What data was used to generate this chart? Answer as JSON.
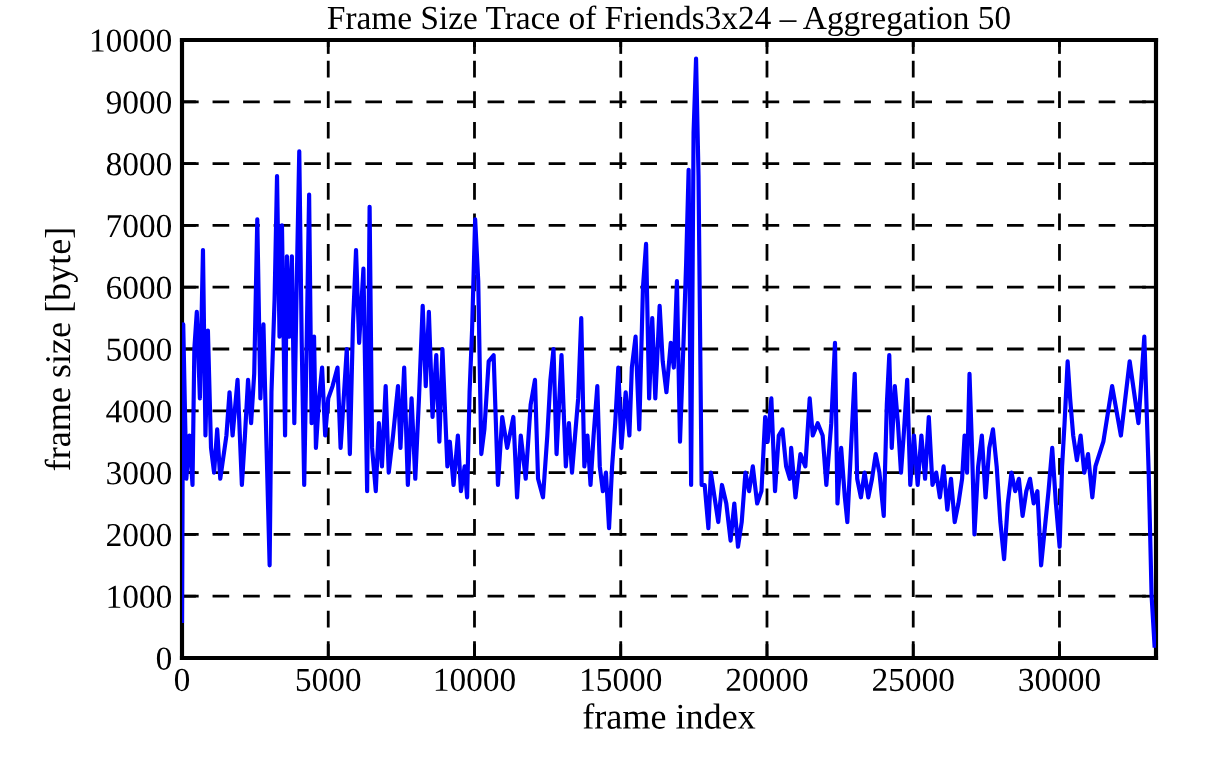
{
  "chart_data": {
    "type": "line",
    "title": "Frame Size Trace of Friends3x24 – Aggregation 50",
    "xlabel": "frame index",
    "ylabel": "frame size [byte]",
    "xlim": [
      0,
      33300
    ],
    "ylim": [
      0,
      10000
    ],
    "xticks": [
      0,
      5000,
      10000,
      15000,
      20000,
      25000,
      30000
    ],
    "yticks": [
      0,
      1000,
      2000,
      3000,
      4000,
      5000,
      6000,
      7000,
      8000,
      9000,
      10000
    ],
    "grid": true,
    "line_style": "dashed",
    "series": [
      {
        "color": "#0000ff",
        "line_style": "solid",
        "x": [
          0,
          42,
          148,
          253,
          359,
          422,
          506,
          612,
          717,
          802,
          886,
          992,
          1097,
          1203,
          1308,
          1519,
          1625,
          1730,
          1899,
          2047,
          2152,
          2258,
          2363,
          2469,
          2574,
          2680,
          2785,
          2891,
          2996,
          3059,
          3165,
          3249,
          3334,
          3418,
          3524,
          3587,
          3671,
          3756,
          3840,
          3924,
          4009,
          4093,
          4178,
          4262,
          4346,
          4431,
          4515,
          4579,
          4684,
          4790,
          4895,
          5001,
          5148,
          5317,
          5423,
          5634,
          5739,
          5845,
          5950,
          6056,
          6203,
          6330,
          6414,
          6499,
          6625,
          6731,
          6836,
          6963,
          7068,
          7216,
          7385,
          7469,
          7596,
          7722,
          7849,
          7976,
          8102,
          8229,
          8334,
          8440,
          8566,
          8693,
          8799,
          8904,
          9073,
          9157,
          9284,
          9432,
          9537,
          9664,
          9748,
          9832,
          9917,
          10022,
          10128,
          10233,
          10339,
          10485,
          10654,
          10802,
          10949,
          11118,
          11329,
          11456,
          11582,
          11751,
          11920,
          12068,
          12173,
          12342,
          12490,
          12595,
          12701,
          12806,
          12975,
          13123,
          13228,
          13334,
          13439,
          13545,
          13650,
          13756,
          13861,
          13967,
          14072,
          14199,
          14283,
          14389,
          14494,
          14600,
          14705,
          14811,
          14916,
          15022,
          15169,
          15296,
          15380,
          15507,
          15633,
          15760,
          15866,
          15971,
          16077,
          16182,
          16330,
          16435,
          16562,
          16710,
          16815,
          16921,
          17026,
          17153,
          17237,
          17321,
          17406,
          17490,
          17575,
          17659,
          17765,
          17870,
          17997,
          18081,
          18208,
          18334,
          18461,
          18609,
          18756,
          18883,
          19009,
          19136,
          19263,
          19389,
          19516,
          19664,
          19811,
          19938,
          20022,
          20149,
          20275,
          20402,
          20529,
          20655,
          20782,
          20827,
          20974,
          21143,
          21312,
          21460,
          21565,
          21734,
          21903,
          22029,
          22198,
          22325,
          22409,
          22536,
          22662,
          22747,
          22873,
          23000,
          23084,
          23211,
          23337,
          23464,
          23591,
          23717,
          23844,
          23992,
          24097,
          24181,
          24266,
          24371,
          24477,
          24582,
          24688,
          24793,
          24899,
          25025,
          25152,
          25279,
          25405,
          25532,
          25658,
          25785,
          25912,
          26038,
          26165,
          26291,
          26418,
          26545,
          26671,
          26756,
          26840,
          26924,
          27009,
          27093,
          27220,
          27346,
          27473,
          27600,
          27726,
          27853,
          27979,
          28106,
          28233,
          28359,
          28486,
          28612,
          28739,
          28866,
          28992,
          29119,
          29245,
          29372,
          29499,
          29625,
          29752,
          29878,
          30005,
          30089,
          30174,
          30279,
          30364,
          30469,
          30596,
          30722,
          30849,
          30976,
          31123,
          31229,
          31500,
          31800,
          32100,
          32400,
          32700,
          32900,
          33050,
          33150,
          33250
        ],
        "values": [
          600,
          5400,
          2900,
          3600,
          2800,
          5000,
          5600,
          4200,
          6600,
          3600,
          5300,
          3400,
          3000,
          3700,
          2900,
          3600,
          4300,
          3600,
          4500,
          2800,
          3600,
          4500,
          3800,
          4600,
          7100,
          4200,
          5400,
          3400,
          1500,
          4300,
          5800,
          7800,
          5200,
          7000,
          3600,
          6500,
          5200,
          6500,
          3800,
          6100,
          8200,
          5100,
          2800,
          5100,
          7500,
          3800,
          5200,
          3400,
          4200,
          4700,
          3600,
          4200,
          4400,
          4700,
          3400,
          5000,
          3300,
          5400,
          6600,
          5100,
          6300,
          2700,
          7300,
          3400,
          2700,
          3800,
          3100,
          4400,
          3000,
          3600,
          4400,
          3400,
          4700,
          2800,
          4200,
          2900,
          4200,
          5700,
          4400,
          5600,
          3900,
          4900,
          3500,
          5000,
          3100,
          3500,
          2800,
          3600,
          2700,
          3100,
          2600,
          4300,
          5300,
          7100,
          6100,
          3300,
          3700,
          4800,
          4900,
          2800,
          3900,
          3400,
          3900,
          2600,
          3600,
          2900,
          4100,
          4500,
          2900,
          2600,
          3600,
          4500,
          5000,
          3300,
          4900,
          3100,
          3800,
          3000,
          3600,
          4200,
          5500,
          3100,
          3600,
          2800,
          3600,
          4400,
          3100,
          2700,
          3000,
          2100,
          3100,
          3800,
          4700,
          3400,
          4300,
          3600,
          4700,
          5200,
          3700,
          6000,
          6700,
          4200,
          5500,
          4200,
          5700,
          4800,
          4300,
          5100,
          4700,
          6100,
          3500,
          5200,
          6400,
          7900,
          2800,
          8500,
          9700,
          7800,
          2800,
          2800,
          2100,
          3000,
          2600,
          2200,
          2800,
          2500,
          1900,
          2500,
          1800,
          2200,
          3000,
          2700,
          3100,
          2500,
          2700,
          3900,
          3500,
          4200,
          2700,
          3600,
          3700,
          3100,
          2900,
          3400,
          2600,
          3300,
          3100,
          4200,
          3600,
          3800,
          3600,
          2800,
          3800,
          5100,
          2500,
          3400,
          2600,
          2200,
          3400,
          4600,
          2900,
          2600,
          3000,
          2600,
          2900,
          3300,
          3000,
          2300,
          4100,
          4900,
          3400,
          4400,
          3800,
          3000,
          3700,
          4500,
          2800,
          3600,
          2800,
          3600,
          2900,
          3900,
          2800,
          3000,
          2600,
          3100,
          2400,
          2900,
          2200,
          2500,
          2900,
          3600,
          3000,
          4600,
          3400,
          2000,
          3100,
          3600,
          2600,
          3400,
          3700,
          3100,
          2200,
          1600,
          2500,
          3000,
          2700,
          2900,
          2300,
          2700,
          2900,
          2500,
          2700,
          1500,
          2100,
          2700,
          3400,
          2500,
          1800,
          3100,
          3800,
          4800,
          4200,
          3600,
          3200,
          3600,
          3000,
          3300,
          2600,
          3100,
          3500,
          4400,
          3600,
          4800,
          3800,
          5200,
          3000,
          1000,
          200
        ]
      }
    ]
  }
}
